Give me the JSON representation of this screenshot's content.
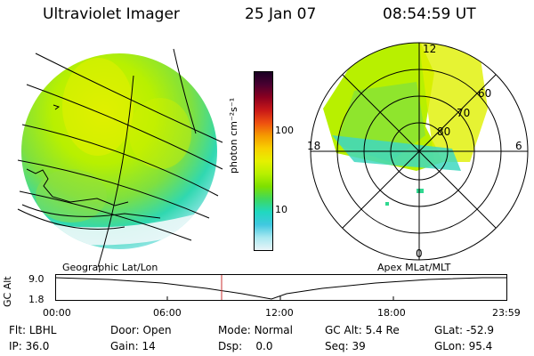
{
  "header": {
    "instrument": "Ultraviolet Imager",
    "date": "25 Jan 07",
    "time": "08:54:59 UT"
  },
  "colorbar": {
    "unit_label": "photon cm⁻²s⁻¹",
    "tick_100": "100",
    "tick_10": "10",
    "colors": [
      "#1a0024",
      "#4a0030",
      "#8c0020",
      "#c81818",
      "#ee5010",
      "#f59a00",
      "#f8d000",
      "#e6f000",
      "#b8f000",
      "#7ee000",
      "#3ed860",
      "#20d8c0",
      "#40c8e0",
      "#a8e8f0",
      "#e8f4f8"
    ]
  },
  "polar": {
    "mlt_12": "12",
    "mlt_18": "18",
    "mlt_6": "6",
    "mlt_0": "0",
    "lat_60": "60",
    "lat_70": "70",
    "lat_80": "80"
  },
  "map_labels": {
    "left": "Geographic Lat/Lon",
    "right": "Apex MLat/MLT"
  },
  "altplot": {
    "axis_label": "GC Alt",
    "y_top": "9.0",
    "y_bottom": "1.8",
    "times": [
      "00:00",
      "06:00",
      "12:00",
      "18:00",
      "23:59"
    ]
  },
  "status": {
    "flt_label": "Flt:",
    "flt_value": "LBHL",
    "ip_label": "IP:",
    "ip_value": "36.0",
    "door_label": "Door:",
    "door_value": "Open",
    "gain_label": "Gain:",
    "gain_value": "14",
    "mode_label": "Mode:",
    "mode_value": "Normal",
    "dsp_label": "Dsp:",
    "dsp_value": "0.0",
    "gcalt_label": "GC Alt:",
    "gcalt_value": "5.4 Re",
    "seq_label": "Seq:",
    "seq_value": "39",
    "glat_label": "GLat:",
    "glat_value": "-52.9",
    "glon_label": "GLon:",
    "glon_value": "95.4"
  }
}
